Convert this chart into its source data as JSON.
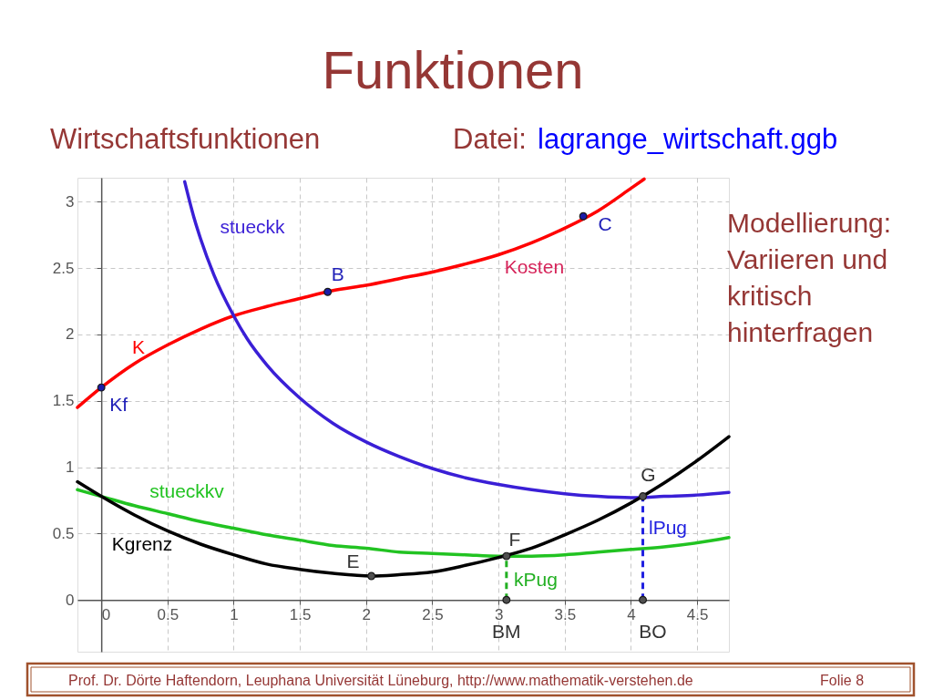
{
  "chart_data": {
    "type": "line",
    "title": "Funktionen",
    "subtitle": "Wirtschaftsfunktionen",
    "xlim": [
      -0.18,
      4.74
    ],
    "ylim": [
      -0.39,
      3.18
    ],
    "xticks": [
      0,
      0.5,
      1,
      1.5,
      2,
      2.5,
      3,
      3.5,
      4,
      4.5
    ],
    "yticks": [
      0,
      0.5,
      1,
      1.5,
      2,
      2.5,
      3
    ],
    "grid": true,
    "marker": "none",
    "line_style": "solid",
    "series": [
      {
        "name": "K",
        "color": "#ff0000",
        "x": [
          -0.18,
          0,
          0.25,
          0.5,
          0.75,
          1,
          1.25,
          1.5,
          1.75,
          2,
          2.25,
          2.5,
          2.75,
          3,
          3.25,
          3.5,
          3.75,
          4,
          4.1
        ],
        "values": [
          1.45,
          1.6,
          1.78,
          1.92,
          2.04,
          2.14,
          2.21,
          2.27,
          2.33,
          2.37,
          2.42,
          2.47,
          2.53,
          2.6,
          2.69,
          2.8,
          2.93,
          3.1,
          3.17
        ]
      },
      {
        "name": "stueckk",
        "color": "#3a1fd6",
        "x": [
          0.63,
          0.7,
          0.75,
          0.85,
          1,
          1.1,
          1.25,
          1.5,
          1.75,
          2,
          2.25,
          2.5,
          2.75,
          3,
          3.25,
          3.5,
          3.75,
          4,
          4.25,
          4.5,
          4.74
        ],
        "values": [
          3.15,
          2.88,
          2.72,
          2.45,
          2.14,
          1.97,
          1.77,
          1.52,
          1.33,
          1.19,
          1.08,
          0.99,
          0.92,
          0.87,
          0.83,
          0.8,
          0.78,
          0.77,
          0.78,
          0.79,
          0.81
        ]
      },
      {
        "name": "stueckkv",
        "color": "#22c322",
        "x": [
          -0.18,
          0,
          0.25,
          0.5,
          0.75,
          1,
          1.25,
          1.5,
          1.75,
          2,
          2.25,
          2.5,
          2.75,
          3,
          3.25,
          3.5,
          3.75,
          4,
          4.25,
          4.5,
          4.74
        ],
        "values": [
          0.83,
          0.78,
          0.71,
          0.65,
          0.59,
          0.54,
          0.49,
          0.45,
          0.41,
          0.39,
          0.36,
          0.35,
          0.34,
          0.33,
          0.33,
          0.34,
          0.36,
          0.38,
          0.4,
          0.43,
          0.47
        ]
      },
      {
        "name": "Kgrenz",
        "color": "#000000",
        "x": [
          -0.18,
          0,
          0.25,
          0.5,
          0.75,
          1,
          1.25,
          1.5,
          1.75,
          2.04,
          2.25,
          2.5,
          2.75,
          3,
          3.25,
          3.5,
          3.75,
          4,
          4.25,
          4.5,
          4.74
        ],
        "values": [
          0.89,
          0.78,
          0.64,
          0.52,
          0.42,
          0.34,
          0.27,
          0.23,
          0.2,
          0.18,
          0.19,
          0.21,
          0.26,
          0.32,
          0.39,
          0.49,
          0.6,
          0.73,
          0.88,
          1.05,
          1.23
        ]
      },
      {
        "name": "kPug",
        "color": "#22b022",
        "line_style": "dashed",
        "x": [
          3.06,
          3.06
        ],
        "values": [
          0,
          0.33
        ]
      },
      {
        "name": "lPug",
        "color": "#1f1fe0",
        "line_style": "dashed",
        "x": [
          4.09,
          4.09
        ],
        "values": [
          0,
          0.78
        ]
      },
      {
        "type": "scatter",
        "marker": "circle",
        "color": "#1c1ca8",
        "x": [
          0,
          1.71,
          3.64
        ],
        "values": [
          1.6,
          2.32,
          2.89
        ]
      },
      {
        "type": "scatter",
        "marker": "circle",
        "color": "#505050",
        "x": [
          2.04,
          3.06,
          4.09,
          3.06,
          4.09
        ],
        "values": [
          0.18,
          0.33,
          0.78,
          0,
          0
        ]
      }
    ],
    "annotations": [
      "Datei:",
      "lagrange_wirtschaft.ggb",
      "Modellierung: Variieren und kritisch hinterfragen",
      "Prof. Dr. Dörte Haftendorn, Leuphana Universität Lüneburg, http://www.mathematik-verstehen.de",
      "Folie 8",
      {
        "text": "Kosten",
        "x": 3.27,
        "y": 2.69
      },
      {
        "text": "Kf",
        "x": 0,
        "y": 1.6
      },
      {
        "text": "B",
        "x": 1.71,
        "y": 2.32
      },
      {
        "text": "C",
        "x": 3.64,
        "y": 2.89
      },
      {
        "text": "E",
        "x": 2.04,
        "y": 0.18
      },
      {
        "text": "F",
        "x": 3.06,
        "y": 0.33
      },
      {
        "text": "G",
        "x": 4.09,
        "y": 0.78
      },
      {
        "text": "BM",
        "x": 3.06,
        "y": 0
      },
      {
        "text": "BO",
        "x": 4.09,
        "y": 0
      }
    ]
  }
}
